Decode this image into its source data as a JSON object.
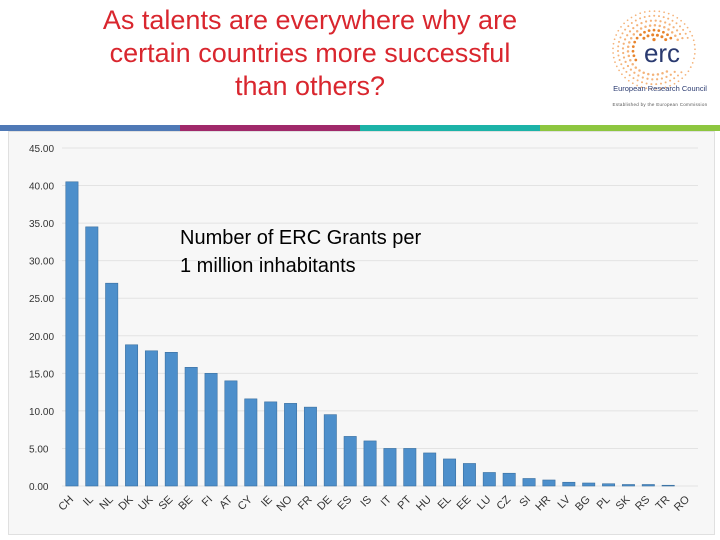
{
  "header": {
    "title_lines": [
      "As talents are everywhere why are",
      "certain countries more successful",
      "than others?"
    ]
  },
  "logo": {
    "mark": "erc",
    "name": "European Research Council",
    "tagline": "Established by the European Commission"
  },
  "colors": {
    "title": "#d9262e",
    "bar": "#4d8fcb",
    "bar_edge": "#3a6f9f",
    "bands": [
      "#4f79b6",
      "#a0296a",
      "#1cb3a8",
      "#8dc63f"
    ]
  },
  "chart_data": {
    "type": "bar",
    "categories": [
      "CH",
      "IL",
      "NL",
      "DK",
      "UK",
      "SE",
      "BE",
      "FI",
      "AT",
      "CY",
      "IE",
      "NO",
      "FR",
      "DE",
      "ES",
      "IS",
      "IT",
      "PT",
      "HU",
      "EL",
      "EE",
      "LU",
      "CZ",
      "SI",
      "HR",
      "LV",
      "BG",
      "PL",
      "SK",
      "RS",
      "TR",
      "RO"
    ],
    "values": [
      40.5,
      34.5,
      27.0,
      18.8,
      18.0,
      17.8,
      15.8,
      15.0,
      14.0,
      11.6,
      11.2,
      11.0,
      10.5,
      9.5,
      6.6,
      6.0,
      5.0,
      5.0,
      4.4,
      3.6,
      3.0,
      1.8,
      1.7,
      1.0,
      0.8,
      0.5,
      0.4,
      0.3,
      0.2,
      0.2,
      0.1,
      0.0
    ],
    "yticks": [
      "0.00",
      "5.00",
      "10.00",
      "15.00",
      "20.00",
      "25.00",
      "30.00",
      "35.00",
      "40.00",
      "45.00"
    ],
    "ylim": [
      0,
      45
    ],
    "grid": true,
    "annotation": [
      "Number of ERC Grants per",
      "1 million inhabitants"
    ]
  }
}
